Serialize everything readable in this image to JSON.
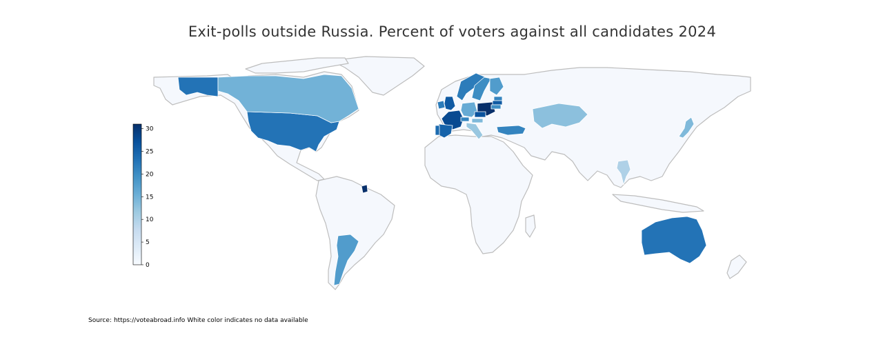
{
  "title": "Exit-polls outside Russia. Percent of voters against all candidates 2024",
  "source": {
    "prefix": "Source:",
    "url": "https://voteabroad.info",
    "note": "White color indicates no data available"
  },
  "colorbar": {
    "min": 0,
    "max": 31,
    "ticks": [
      0,
      5,
      10,
      15,
      20,
      25,
      30
    ],
    "palette": [
      "#f7fbff",
      "#deebf7",
      "#c6dbef",
      "#9ecae1",
      "#6baed6",
      "#4292c6",
      "#2171b5",
      "#08519c",
      "#08306b"
    ]
  },
  "colors": {
    "no_data": "#f5f8fd",
    "border": "#c8c8c8",
    "coastline": "#bdbdbd"
  },
  "chart_data": {
    "type": "choropleth",
    "title": "Exit-polls outside Russia. Percent of voters against all candidates 2024",
    "value_range": [
      0,
      31
    ],
    "values": [
      {
        "country": "United States",
        "value": 23
      },
      {
        "country": "Canada",
        "value": 15
      },
      {
        "country": "Argentina",
        "value": 18
      },
      {
        "country": "French Guiana",
        "value": 31
      },
      {
        "country": "France",
        "value": 28
      },
      {
        "country": "Spain",
        "value": 25
      },
      {
        "country": "Portugal",
        "value": 24
      },
      {
        "country": "United Kingdom",
        "value": 26
      },
      {
        "country": "Ireland",
        "value": 22
      },
      {
        "country": "Germany",
        "value": 16
      },
      {
        "country": "Poland",
        "value": 31
      },
      {
        "country": "Czechia",
        "value": 27
      },
      {
        "country": "Austria",
        "value": 14
      },
      {
        "country": "Switzerland",
        "value": 21
      },
      {
        "country": "Italy",
        "value": 12
      },
      {
        "country": "Norway",
        "value": 22
      },
      {
        "country": "Sweden",
        "value": 20
      },
      {
        "country": "Finland",
        "value": 18
      },
      {
        "country": "Estonia",
        "value": 21
      },
      {
        "country": "Latvia",
        "value": 26
      },
      {
        "country": "Lithuania",
        "value": 20
      },
      {
        "country": "Turkey",
        "value": 21
      },
      {
        "country": "Kazakhstan",
        "value": 13
      },
      {
        "country": "Thailand",
        "value": 10
      },
      {
        "country": "Japan",
        "value": 14
      },
      {
        "country": "Australia",
        "value": 23
      }
    ]
  }
}
